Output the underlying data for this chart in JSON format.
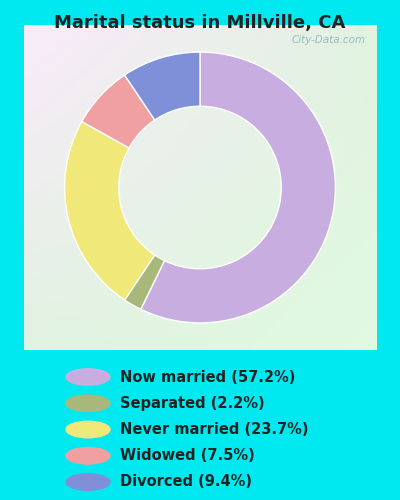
{
  "title": "Marital status in Millville, CA",
  "slices": [
    57.2,
    2.2,
    23.7,
    7.5,
    9.4
  ],
  "labels": [
    "Now married (57.2%)",
    "Separated (2.2%)",
    "Never married (23.7%)",
    "Widowed (7.5%)",
    "Divorced (9.4%)"
  ],
  "colors": [
    "#c8aee0",
    "#a8b87a",
    "#f0e878",
    "#f0a0a0",
    "#8090d8"
  ],
  "bg_color": "#00e8f0",
  "chart_bg": "#d8f0d8",
  "donut_hole": 0.6,
  "watermark": "City-Data.com",
  "title_fontsize": 13,
  "legend_fontsize": 10.5,
  "start_angle": 90
}
